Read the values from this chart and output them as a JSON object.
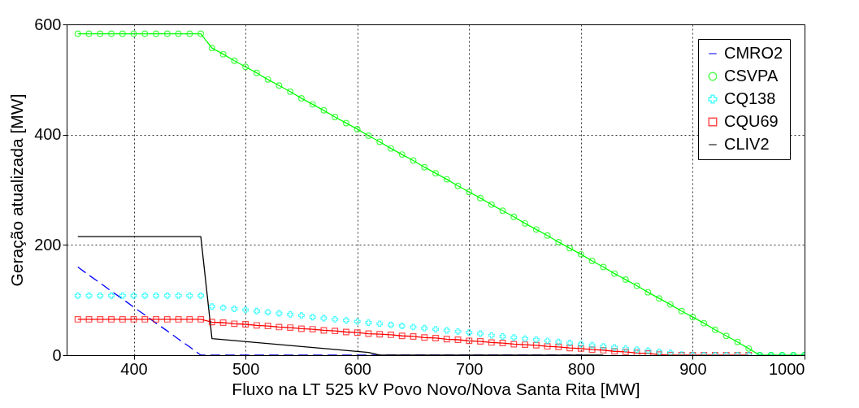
{
  "chart_data": {
    "type": "line",
    "xlabel": "Fluxo na LT 525 kV Povo Novo/Nova Santa Rita [MW]",
    "ylabel": "Geração atualizada [MW]",
    "x": [
      350,
      360,
      370,
      380,
      390,
      400,
      410,
      420,
      430,
      440,
      450,
      460,
      470,
      480,
      490,
      500,
      510,
      520,
      530,
      540,
      550,
      560,
      570,
      580,
      590,
      600,
      610,
      620,
      630,
      640,
      650,
      660,
      670,
      680,
      690,
      700,
      710,
      720,
      730,
      740,
      750,
      760,
      770,
      780,
      790,
      800,
      810,
      820,
      830,
      840,
      850,
      860,
      870,
      880,
      890,
      900,
      910,
      920,
      930,
      940,
      950,
      960,
      970,
      980,
      990,
      1000
    ],
    "series": [
      {
        "name": "CMRO2",
        "color": "#0000ff",
        "type": "line",
        "line_style": "dashed",
        "marker": "none",
        "x": [
          350,
          360,
          370,
          380,
          390,
          400,
          410,
          420,
          430,
          440,
          450,
          460,
          800
        ],
        "values": [
          160,
          145,
          131,
          116,
          102,
          87,
          73,
          58,
          44,
          29,
          15,
          0,
          0
        ]
      },
      {
        "name": "CSVPA",
        "color": "#00ff00",
        "type": "line",
        "line_style": "solid",
        "marker": "circle",
        "values": [
          583,
          583,
          583,
          583,
          583,
          583,
          583,
          583,
          583,
          583,
          583,
          583,
          557,
          546,
          534,
          523,
          512,
          500,
          489,
          478,
          466,
          455,
          444,
          432,
          421,
          410,
          398,
          387,
          375,
          364,
          353,
          341,
          330,
          319,
          307,
          296,
          285,
          273,
          262,
          251,
          239,
          228,
          217,
          205,
          194,
          183,
          171,
          160,
          148,
          137,
          126,
          114,
          103,
          92,
          80,
          69,
          58,
          46,
          35,
          24,
          12,
          0,
          0,
          0,
          0,
          0
        ]
      },
      {
        "name": "CQ138",
        "color": "#00ffff",
        "type": "scatter",
        "marker": "cross",
        "values": [
          108,
          108,
          108,
          108,
          108,
          108,
          108,
          108,
          108,
          108,
          108,
          108,
          88,
          86,
          84,
          82,
          80,
          78,
          76,
          74,
          72,
          69,
          67,
          65,
          63,
          61,
          59,
          57,
          55,
          53,
          51,
          49,
          47,
          45,
          43,
          41,
          39,
          36,
          34,
          32,
          30,
          28,
          26,
          24,
          22,
          20,
          18,
          16,
          14,
          12,
          10,
          8,
          6,
          4,
          1,
          0,
          0,
          0,
          0,
          0,
          0,
          0,
          0,
          0,
          0,
          0
        ]
      },
      {
        "name": "CQU69",
        "color": "#ff0000",
        "type": "line",
        "line_style": "solid",
        "marker": "square",
        "values": [
          65,
          65,
          65,
          65,
          65,
          65,
          65,
          65,
          65,
          65,
          65,
          65,
          60,
          59,
          57,
          56,
          54,
          53,
          51,
          50,
          48,
          47,
          45,
          44,
          42,
          41,
          39,
          38,
          37,
          35,
          34,
          32,
          31,
          29,
          28,
          26,
          25,
          23,
          22,
          20,
          19,
          18,
          16,
          15,
          13,
          12,
          10,
          9,
          7,
          6,
          4,
          3,
          1,
          0,
          0,
          0,
          0,
          0,
          0,
          0,
          0,
          null,
          null,
          null,
          null,
          null
        ]
      },
      {
        "name": "CLIV2",
        "color": "#000000",
        "type": "line",
        "line_style": "solid",
        "marker": "none",
        "x": [
          350,
          460,
          470,
          610,
          620,
          820
        ],
        "values": [
          215,
          215,
          30,
          5,
          0,
          0
        ]
      }
    ],
    "xlim": [
      340,
      1000
    ],
    "xticks": [
      400,
      500,
      600,
      700,
      800,
      900,
      1000
    ],
    "ylim": [
      0,
      600
    ],
    "yticks": [
      0,
      200,
      400,
      600
    ],
    "grid": true,
    "legend": "top right"
  }
}
